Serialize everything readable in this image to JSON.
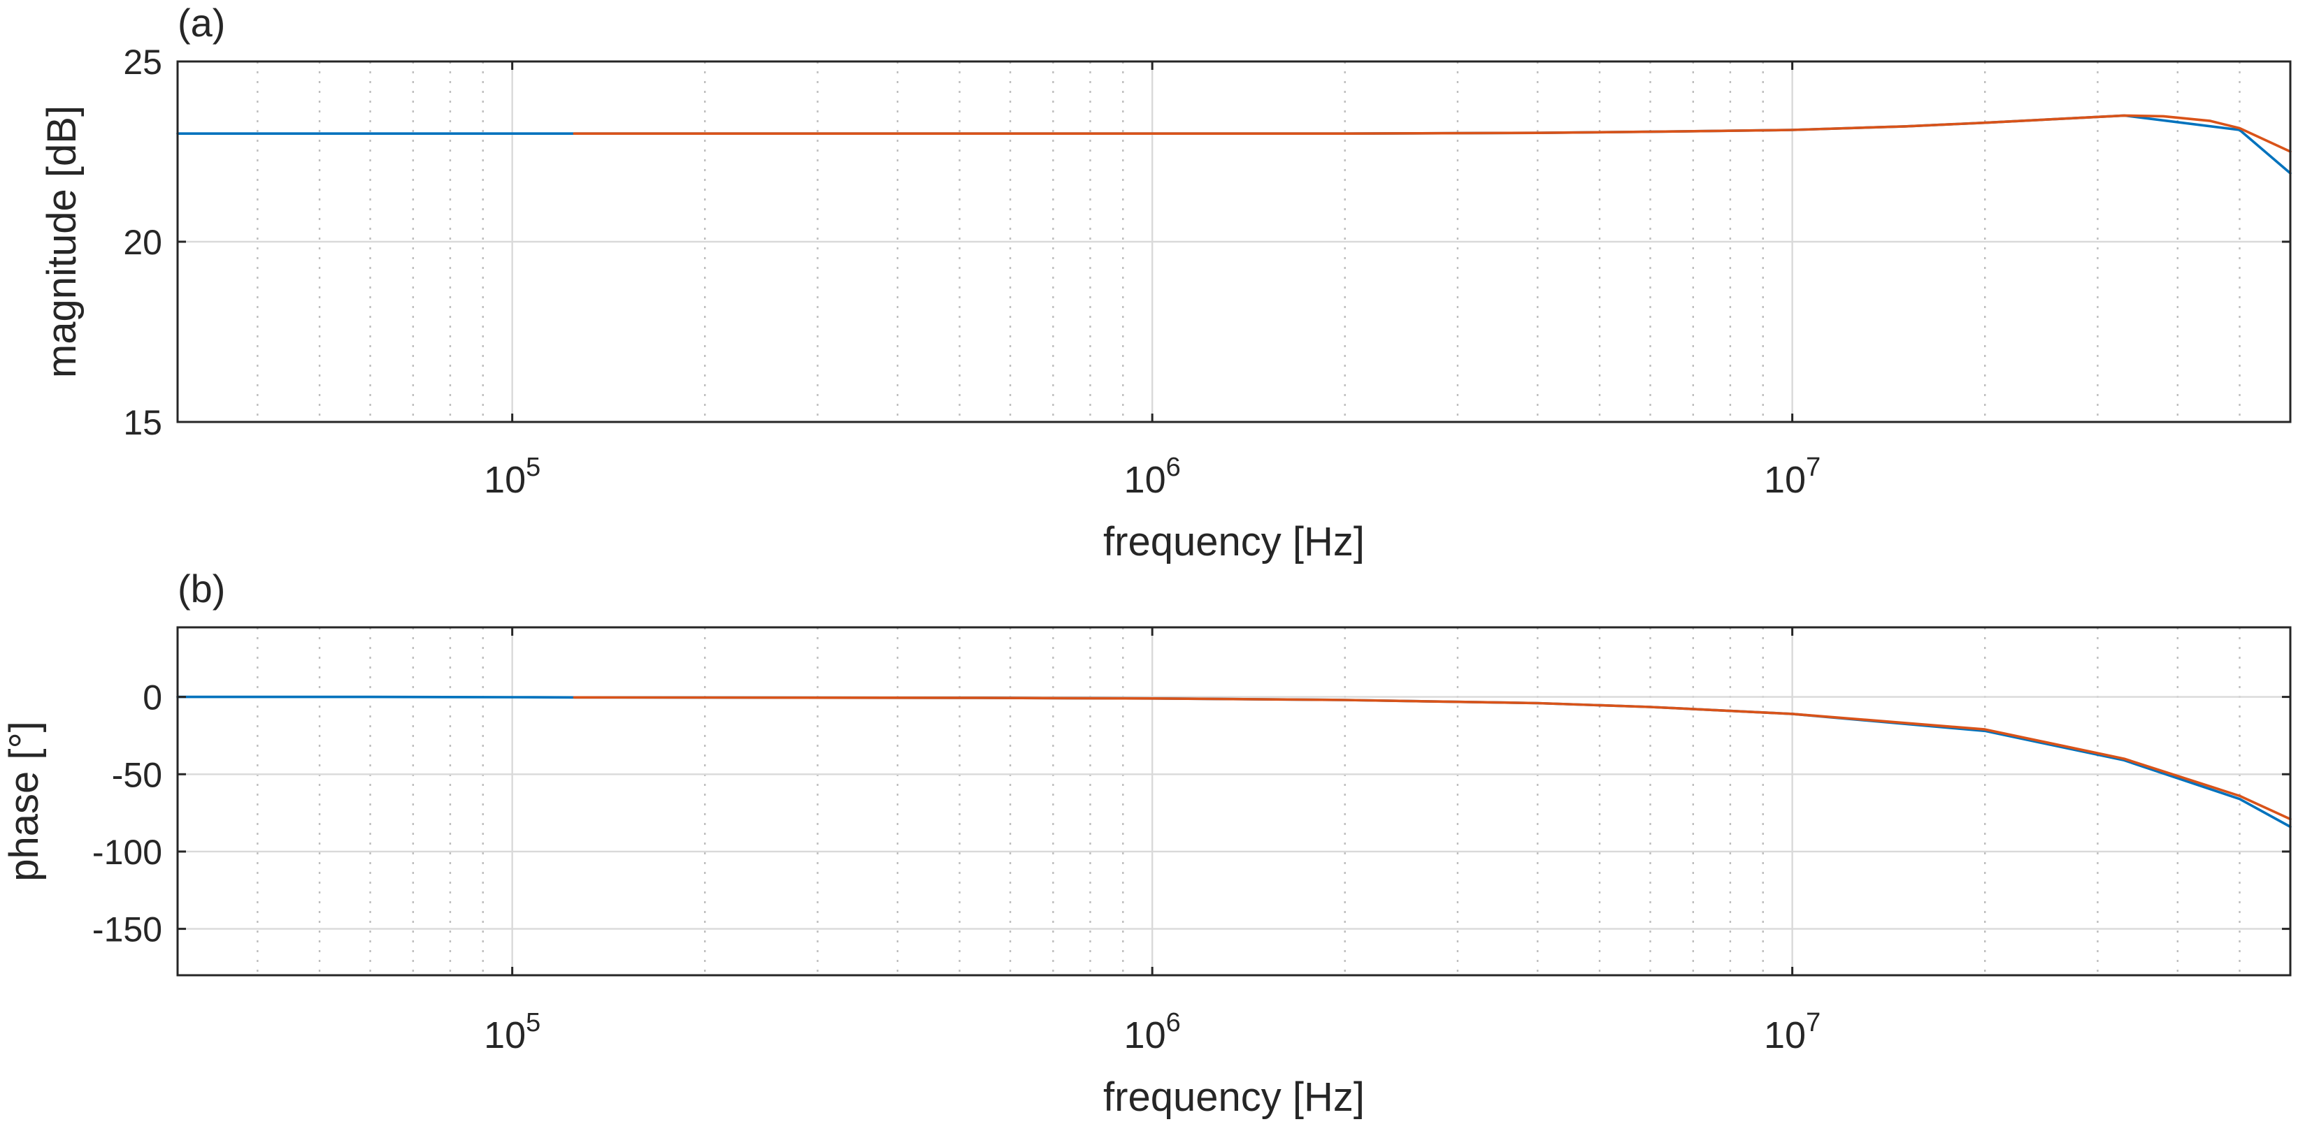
{
  "colors": {
    "series_blue": "#0072bd",
    "series_orange": "#d95319",
    "axis": "#262626"
  },
  "chart_data": [
    {
      "type": "line",
      "panel_label": "(a)",
      "xlabel": "frequency [Hz]",
      "ylabel": "magnitude [dB]",
      "xscale": "log",
      "xlim": [
        30000,
        60000000
      ],
      "ylim": [
        15,
        25
      ],
      "yticks": [
        15,
        20,
        25
      ],
      "ytick_labels": [
        "15",
        "20",
        "25"
      ],
      "xtick_labels": [
        {
          "value": 100000,
          "base": "10",
          "exp": "5"
        },
        {
          "value": 1000000,
          "base": "10",
          "exp": "6"
        },
        {
          "value": 10000000,
          "base": "10",
          "exp": "7"
        }
      ],
      "grid": true,
      "series": [
        {
          "color": "#0072bd",
          "x": [
            30000,
            40000,
            60000,
            100000,
            125000,
            200000,
            500000,
            1000000,
            2000000,
            4000000,
            6000000,
            10000000,
            15000000,
            20000000,
            33000000,
            50000000,
            60000000
          ],
          "y": [
            23.0,
            23.0,
            23.0,
            23.0,
            23.0,
            23.0,
            23.0,
            23.0,
            23.0,
            23.02,
            23.05,
            23.1,
            23.2,
            23.3,
            23.5,
            23.1,
            21.9
          ]
        },
        {
          "color": "#d95319",
          "x": [
            125000,
            200000,
            500000,
            1000000,
            2000000,
            4000000,
            6000000,
            10000000,
            15000000,
            20000000,
            33000000,
            38000000,
            45000000,
            50000000,
            60000000
          ],
          "y": [
            23.0,
            23.0,
            23.0,
            23.0,
            23.0,
            23.02,
            23.05,
            23.1,
            23.2,
            23.3,
            23.5,
            23.48,
            23.35,
            23.15,
            22.5
          ]
        }
      ]
    },
    {
      "type": "line",
      "panel_label": "(b)",
      "xlabel": "frequency [Hz]",
      "ylabel": "phase [°]",
      "xscale": "log",
      "xlim": [
        30000,
        60000000
      ],
      "ylim": [
        -180,
        45
      ],
      "yticks": [
        -150,
        -100,
        -50,
        0
      ],
      "ytick_labels": [
        "-150",
        "-100",
        "-50",
        "0"
      ],
      "xtick_labels": [
        {
          "value": 100000,
          "base": "10",
          "exp": "5"
        },
        {
          "value": 1000000,
          "base": "10",
          "exp": "6"
        },
        {
          "value": 10000000,
          "base": "10",
          "exp": "7"
        }
      ],
      "grid": true,
      "series": [
        {
          "color": "#0072bd",
          "x": [
            30000,
            60000,
            100000,
            125000,
            200000,
            500000,
            1000000,
            2000000,
            4000000,
            6000000,
            10000000,
            20000000,
            33000000,
            50000000,
            60000000
          ],
          "y": [
            0,
            0,
            -0.2,
            -0.3,
            -0.4,
            -0.6,
            -1.0,
            -2.0,
            -4.0,
            -6.5,
            -11,
            -22,
            -41,
            -66,
            -84
          ]
        },
        {
          "color": "#d95319",
          "x": [
            125000,
            200000,
            500000,
            1000000,
            2000000,
            4000000,
            6000000,
            10000000,
            20000000,
            33000000,
            50000000,
            60000000
          ],
          "y": [
            -0.3,
            -0.4,
            -0.6,
            -1.0,
            -2.0,
            -4.0,
            -6.5,
            -11,
            -21,
            -40,
            -64,
            -79
          ]
        }
      ]
    }
  ]
}
